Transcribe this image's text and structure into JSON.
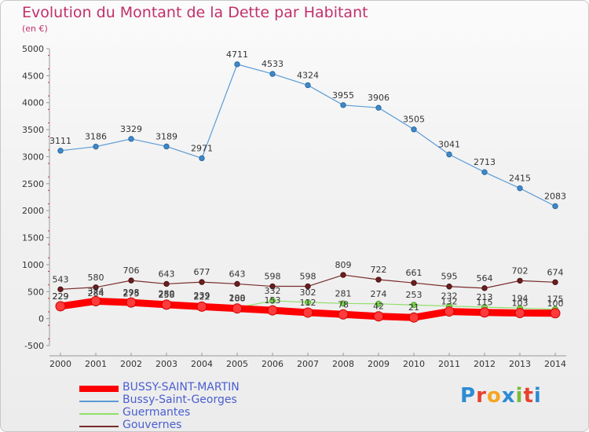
{
  "header": {
    "title": "Evolution du Montant de la Dette par Habitant",
    "unit": "(en €)"
  },
  "logo": {
    "text": "Proxiti",
    "colors": [
      "#2d8bd3",
      "#e8412f",
      "#f5a623",
      "#2d8bd3",
      "#7cb83a",
      "#e8412f",
      "#2d8bd3"
    ]
  },
  "chart_data": {
    "type": "line",
    "title": "Evolution du Montant de la Dette par Habitant",
    "ylabel": "(en €)",
    "x": [
      "2000",
      "2001",
      "2002",
      "2003",
      "2004",
      "2005",
      "2006",
      "2007",
      "2008",
      "2009",
      "2010",
      "2011",
      "2012",
      "2013",
      "2014"
    ],
    "ylim": [
      -500,
      5000
    ],
    "yticks": [
      "5000",
      "4500",
      "4000",
      "3500",
      "3000",
      "2500",
      "2000",
      "1500",
      "1000",
      "500",
      "0",
      "-500"
    ],
    "grid": false,
    "legend_position": "bottom-left",
    "series": [
      {
        "name": "BUSSY-SAINT-MARTIN",
        "color": "#ff0000",
        "values": [
          229,
          324,
          298,
          258,
          222,
          188,
          153,
          112,
          78,
          42,
          21,
          132,
          115,
          103,
          100
        ],
        "labels": [
          "229",
          "324",
          "298",
          "258",
          "222",
          "188",
          "153",
          "112",
          "78",
          "42",
          "21",
          "132",
          "115",
          "103",
          "100"
        ]
      },
      {
        "name": "Bussy-Saint-Georges",
        "color": "#5b9bd5",
        "values": [
          3111,
          3186,
          3329,
          3189,
          2971,
          4711,
          4533,
          4324,
          3955,
          3906,
          3505,
          3041,
          2713,
          2415,
          2083
        ],
        "labels": [
          "3111",
          "3186",
          "3329",
          "3189",
          "2971",
          "4711",
          "4533",
          "4324",
          "3955",
          "3906",
          "3505",
          "3041",
          "2713",
          "2415",
          "2083"
        ]
      },
      {
        "name": "Guermantes",
        "color": "#8fe066",
        "values": [
          229,
          284,
          275,
          280,
          239,
          200,
          332,
          302,
          281,
          274,
          253,
          232,
          213,
          194,
          175
        ],
        "labels": [
          "229",
          "284",
          "275",
          "280",
          "239",
          "200",
          "332",
          "302",
          "281",
          "274",
          "253",
          "232",
          "213",
          "194",
          "175"
        ]
      },
      {
        "name": "Gouvernes",
        "color": "#7a2b2b",
        "values": [
          543,
          580,
          706,
          643,
          677,
          643,
          598,
          598,
          809,
          722,
          661,
          595,
          564,
          702,
          674
        ],
        "labels": [
          "543",
          "580",
          "706",
          "643",
          "677",
          "643",
          "598",
          "598",
          "809",
          "722",
          "661",
          "595",
          "564",
          "702",
          "674"
        ]
      }
    ]
  }
}
